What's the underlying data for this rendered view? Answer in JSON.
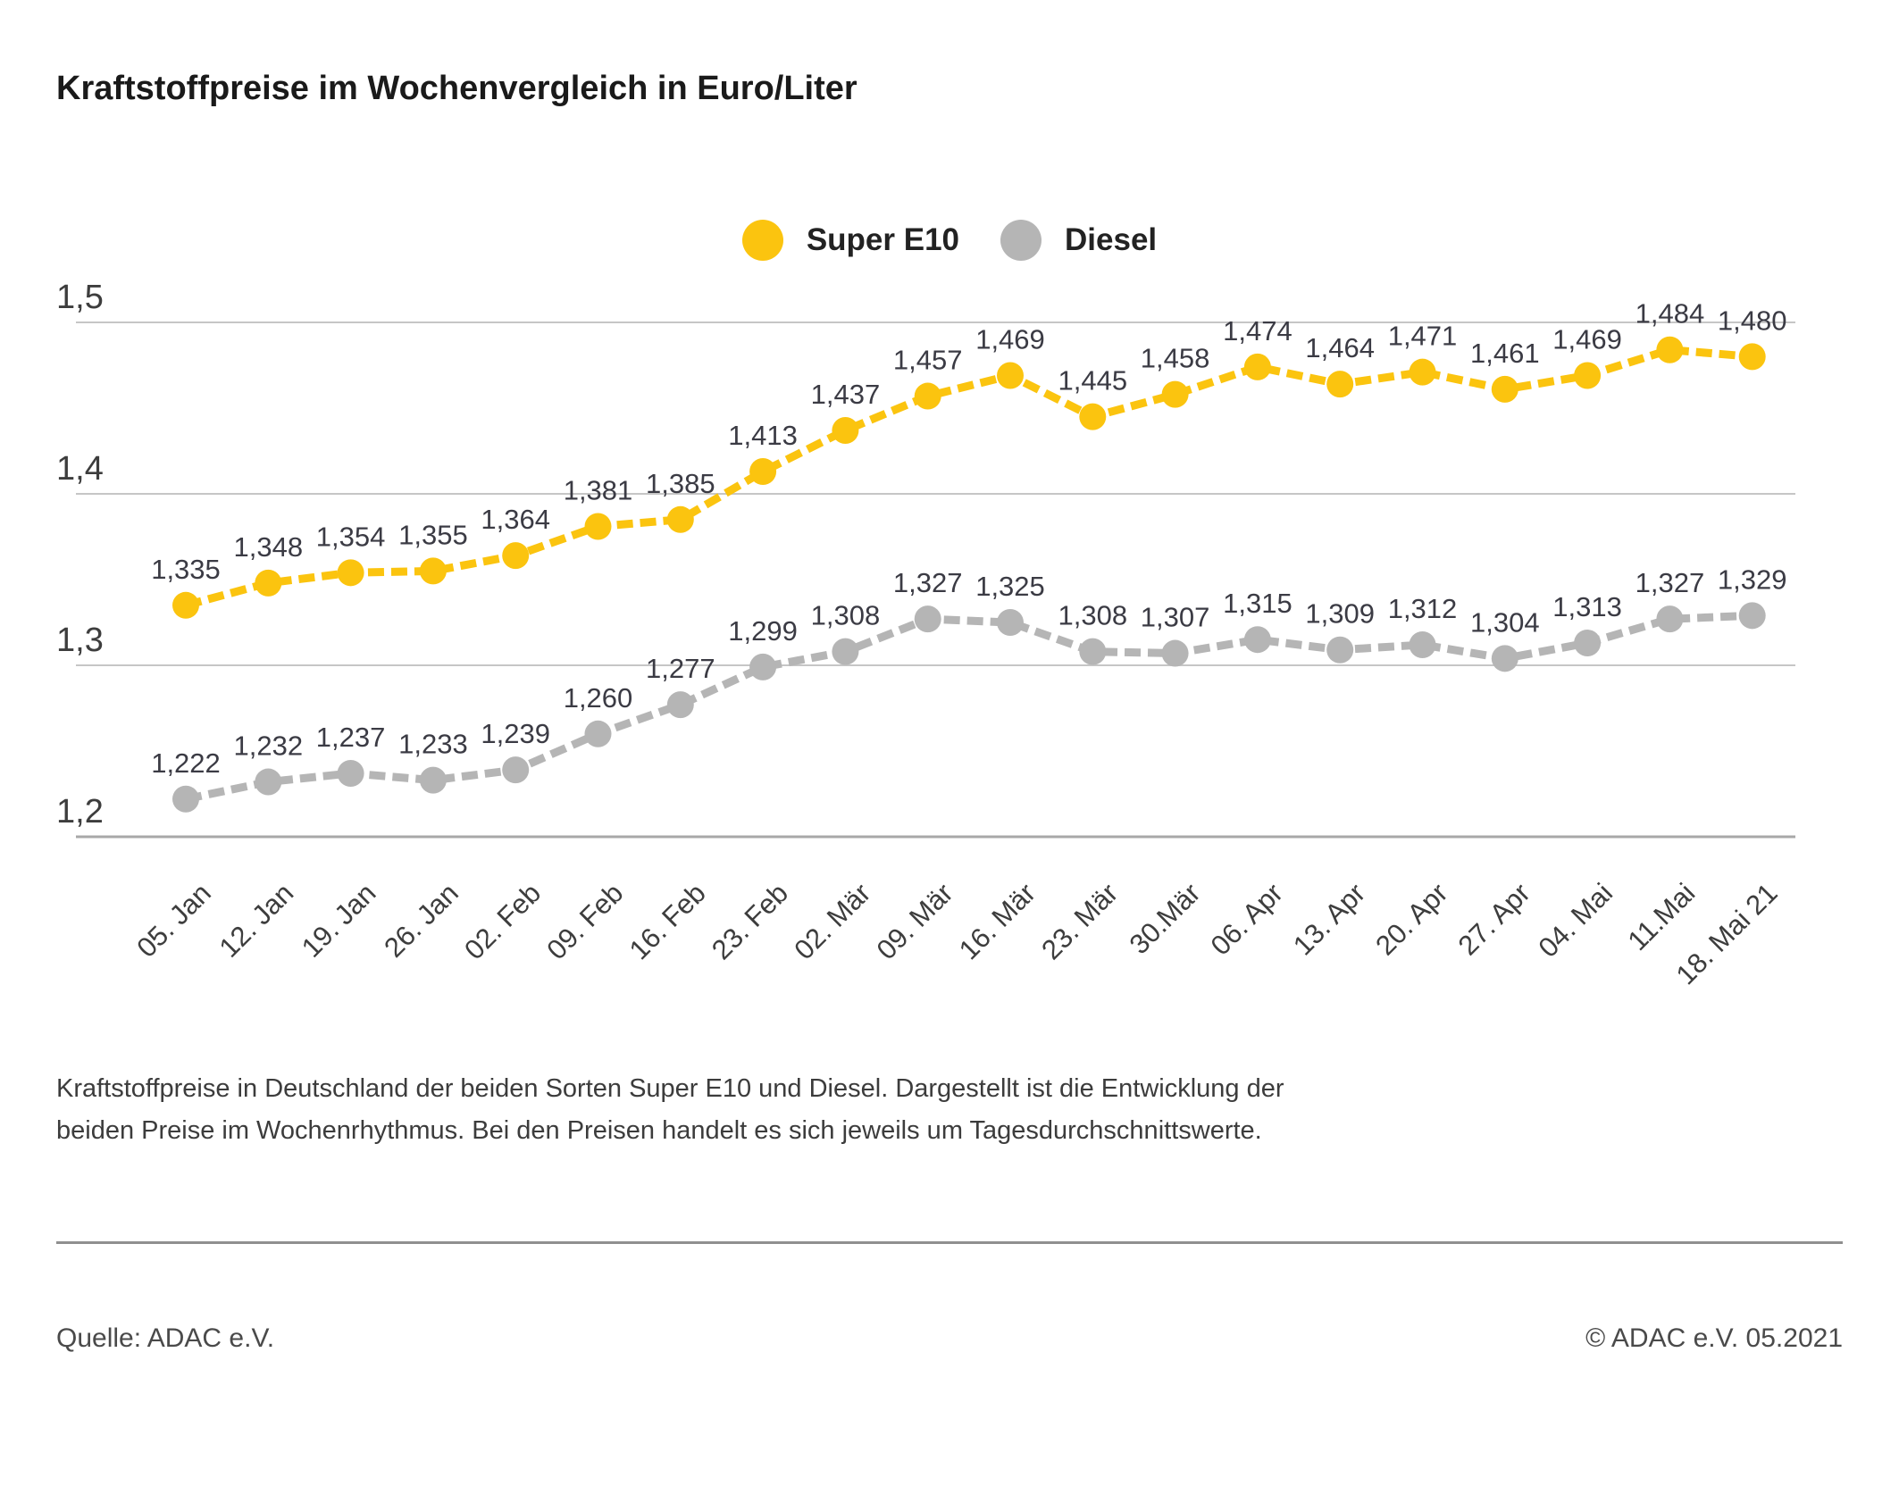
{
  "title": "Kraftstoffpreise im Wochenvergleich in Euro/Liter",
  "legend": [
    {
      "label": "Super E10",
      "color": "#FBC40F"
    },
    {
      "label": "Diesel",
      "color": "#B5B5B5"
    }
  ],
  "chart_data": {
    "type": "line",
    "categories": [
      "05. Jan",
      "12. Jan",
      "19. Jan",
      "26. Jan",
      "02. Feb",
      "09. Feb",
      "16. Feb",
      "23. Feb",
      "02. Mär",
      "09. Mär",
      "16. Mär",
      "23. Mär",
      "30.Mär",
      "06. Apr",
      "13. Apr",
      "20. Apr",
      "27. Apr",
      "04. Mai",
      "11.Mai",
      "18. Mai 21"
    ],
    "series": [
      {
        "name": "Super E10",
        "color": "#FBC40F",
        "values": [
          1.335,
          1.348,
          1.354,
          1.355,
          1.364,
          1.381,
          1.385,
          1.413,
          1.437,
          1.457,
          1.469,
          1.445,
          1.458,
          1.474,
          1.464,
          1.471,
          1.461,
          1.469,
          1.484,
          1.48
        ]
      },
      {
        "name": "Diesel",
        "color": "#B5B5B5",
        "values": [
          1.222,
          1.232,
          1.237,
          1.233,
          1.239,
          1.26,
          1.277,
          1.299,
          1.308,
          1.327,
          1.325,
          1.308,
          1.307,
          1.315,
          1.309,
          1.312,
          1.304,
          1.313,
          1.327,
          1.329
        ]
      }
    ],
    "title": "Kraftstoffpreise im Wochenvergleich in Euro/Liter",
    "xlabel": "",
    "ylabel": "Euro/Liter",
    "ylim": [
      1.2,
      1.5
    ],
    "yticks": [
      1.5,
      1.4,
      1.3,
      1.2
    ],
    "grid": true,
    "legend_position": "top-center",
    "value_labels": true,
    "decimal_separator": ","
  },
  "caption": "Kraftstoffpreise in Deutschland der beiden Sorten Super E10 und Diesel. Dargestellt ist die Entwicklung der beiden Preise im Wochenrhythmus. Bei den Preisen handelt es sich jeweils um Tagesdurchschnittswerte.",
  "footer": {
    "source": "Quelle: ADAC e.V.",
    "copyright": "© ADAC e.V. 05.2021"
  },
  "colors": {
    "grid_line": "#c6c6c6",
    "axis_line": "#a8a8a8",
    "tick_text": "#3d3d3d",
    "value_text": "#3b3b44"
  }
}
